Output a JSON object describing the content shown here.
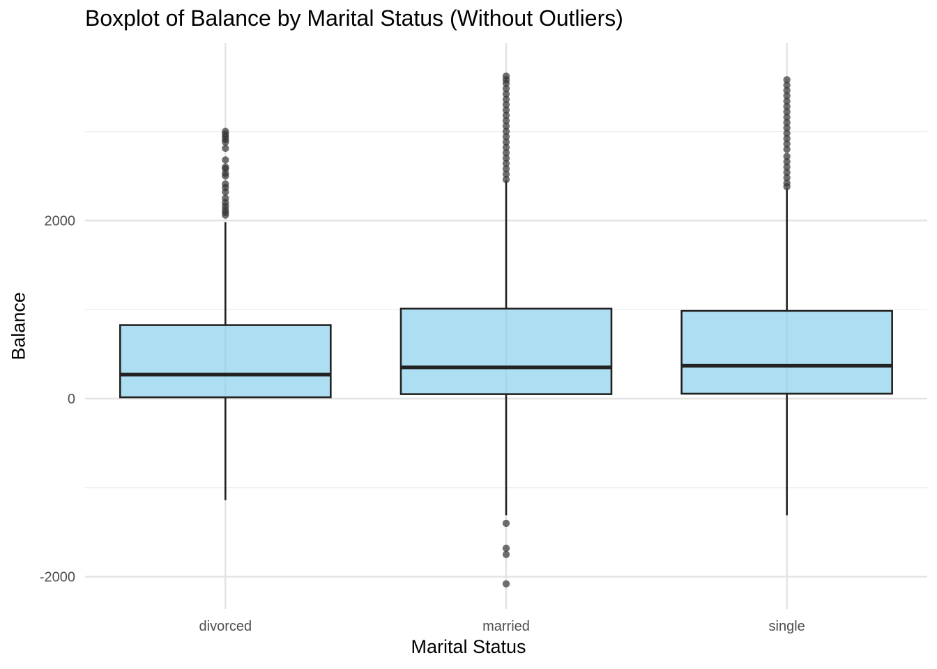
{
  "chart_data": {
    "type": "boxplot",
    "title": "Boxplot of Balance by Marital Status (Without Outliers)",
    "xlabel": "Marital Status",
    "ylabel": "Balance",
    "ylim": [
      -2350,
      4000
    ],
    "y_major_ticks": [
      -2000,
      0,
      2000
    ],
    "y_tick_labels": [
      "-2000",
      "0",
      "2000"
    ],
    "y_minor_ticks": [
      -1000,
      1000,
      3000
    ],
    "grid": true,
    "colors": {
      "box_fill": "#87CEEB",
      "box_stroke": "#222222",
      "outlier": "#333333",
      "grid_major": "#e3e3e3",
      "grid_minor": "#ececec"
    },
    "categories": [
      "divorced",
      "married",
      "single"
    ],
    "boxes": [
      {
        "category": "divorced",
        "whisker_low": -1140,
        "q1": 15,
        "median": 270,
        "q3": 825,
        "whisker_high": 1980,
        "outliers": [
          2060,
          2090,
          2120,
          2160,
          2200,
          2250,
          2320,
          2370,
          2410,
          2500,
          2530,
          2580,
          2600,
          2680,
          2810,
          2880,
          2910,
          2940,
          2970,
          3000
        ]
      },
      {
        "category": "married",
        "whisker_low": -1310,
        "q1": 50,
        "median": 350,
        "q3": 1010,
        "whisker_high": 2450,
        "outliers": [
          -1400,
          -1680,
          -1750,
          -2080,
          2460,
          2520,
          2580,
          2640,
          2700,
          2760,
          2820,
          2880,
          2940,
          3000,
          3060,
          3120,
          3180,
          3240,
          3300,
          3360,
          3420,
          3480,
          3540,
          3580,
          3620
        ]
      },
      {
        "category": "single",
        "whisker_low": -1310,
        "q1": 55,
        "median": 370,
        "q3": 985,
        "whisker_high": 2360,
        "outliers": [
          2380,
          2420,
          2480,
          2540,
          2600,
          2660,
          2720,
          2800,
          2860,
          2920,
          2980,
          3040,
          3100,
          3160,
          3220,
          3280,
          3340,
          3400,
          3460,
          3520,
          3580
        ]
      }
    ]
  }
}
